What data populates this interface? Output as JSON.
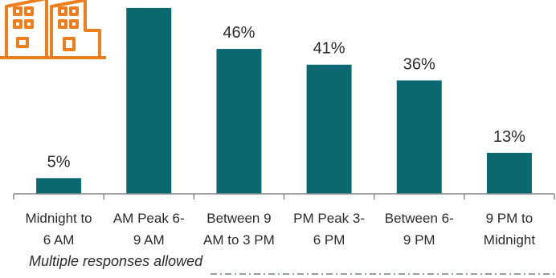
{
  "chart_data": {
    "type": "bar",
    "categories": [
      [
        "Midnight to",
        "6 AM"
      ],
      [
        "AM Peak 6-",
        "9 AM"
      ],
      [
        "Between 9",
        "AM to 3 PM"
      ],
      [
        "PM Peak 3-",
        "6 PM"
      ],
      [
        "Between 6-",
        "9 PM"
      ],
      [
        "9 PM to",
        "Midnight"
      ]
    ],
    "values": [
      5,
      59,
      46,
      41,
      36,
      13
    ],
    "value_labels": [
      "5%",
      "",
      "46%",
      "41%",
      "36%",
      "13%"
    ],
    "ylim": [
      0,
      60
    ],
    "grid": false,
    "colors": {
      "bar": "#0b6770",
      "axis": "#8a8a8a",
      "icon": "#ee7d1d",
      "dash": "#6e7f85"
    }
  },
  "note": "Multiple responses allowed",
  "icon": "city-buildings-icon"
}
